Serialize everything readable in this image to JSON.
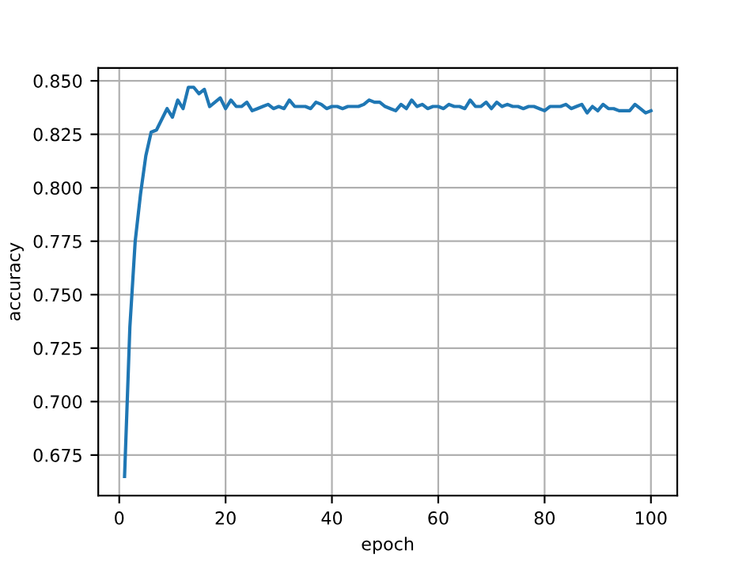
{
  "chart_data": {
    "type": "line",
    "xlabel": "epoch",
    "ylabel": "accuracy",
    "x": [
      1,
      2,
      3,
      4,
      5,
      6,
      7,
      8,
      9,
      10,
      11,
      12,
      13,
      14,
      15,
      16,
      17,
      18,
      19,
      20,
      21,
      22,
      23,
      24,
      25,
      26,
      27,
      28,
      29,
      30,
      31,
      32,
      33,
      34,
      35,
      36,
      37,
      38,
      39,
      40,
      41,
      42,
      43,
      44,
      45,
      46,
      47,
      48,
      49,
      50,
      51,
      52,
      53,
      54,
      55,
      56,
      57,
      58,
      59,
      60,
      61,
      62,
      63,
      64,
      65,
      66,
      67,
      68,
      69,
      70,
      71,
      72,
      73,
      74,
      75,
      76,
      77,
      78,
      79,
      80,
      81,
      82,
      83,
      84,
      85,
      86,
      87,
      88,
      89,
      90,
      91,
      92,
      93,
      94,
      95,
      96,
      97,
      98,
      99,
      100
    ],
    "series": [
      {
        "color": "#1f77b4",
        "values": [
          0.665,
          0.735,
          0.775,
          0.797,
          0.815,
          0.826,
          0.827,
          0.832,
          0.837,
          0.833,
          0.841,
          0.837,
          0.847,
          0.847,
          0.844,
          0.846,
          0.838,
          0.84,
          0.842,
          0.837,
          0.841,
          0.838,
          0.838,
          0.84,
          0.836,
          0.837,
          0.838,
          0.839,
          0.837,
          0.838,
          0.837,
          0.841,
          0.838,
          0.838,
          0.838,
          0.837,
          0.84,
          0.839,
          0.837,
          0.838,
          0.838,
          0.837,
          0.838,
          0.838,
          0.838,
          0.839,
          0.841,
          0.84,
          0.84,
          0.838,
          0.837,
          0.836,
          0.839,
          0.837,
          0.841,
          0.838,
          0.839,
          0.837,
          0.838,
          0.838,
          0.837,
          0.839,
          0.838,
          0.838,
          0.837,
          0.841,
          0.838,
          0.838,
          0.84,
          0.837,
          0.84,
          0.838,
          0.839,
          0.838,
          0.838,
          0.837,
          0.838,
          0.838,
          0.837,
          0.836,
          0.838,
          0.838,
          0.838,
          0.839,
          0.837,
          0.838,
          0.839,
          0.835,
          0.838,
          0.836,
          0.839,
          0.837,
          0.837,
          0.836,
          0.836,
          0.836,
          0.839,
          0.837,
          0.835,
          0.836
        ]
      }
    ],
    "xlim": [
      -3.95,
      104.95
    ],
    "xticks": [
      0,
      20,
      40,
      60,
      80,
      100
    ],
    "ylim": [
      0.656,
      0.856
    ],
    "yticks": [
      {
        "value": 0.675,
        "label": "0.675"
      },
      {
        "value": 0.7,
        "label": "0.700"
      },
      {
        "value": 0.725,
        "label": "0.725"
      },
      {
        "value": 0.75,
        "label": "0.750"
      },
      {
        "value": 0.775,
        "label": "0.775"
      },
      {
        "value": 0.8,
        "label": "0.800"
      },
      {
        "value": 0.825,
        "label": "0.825"
      },
      {
        "value": 0.85,
        "label": "0.850"
      }
    ],
    "grid": true,
    "legend": false,
    "marker": "none",
    "line_style": "solid"
  }
}
